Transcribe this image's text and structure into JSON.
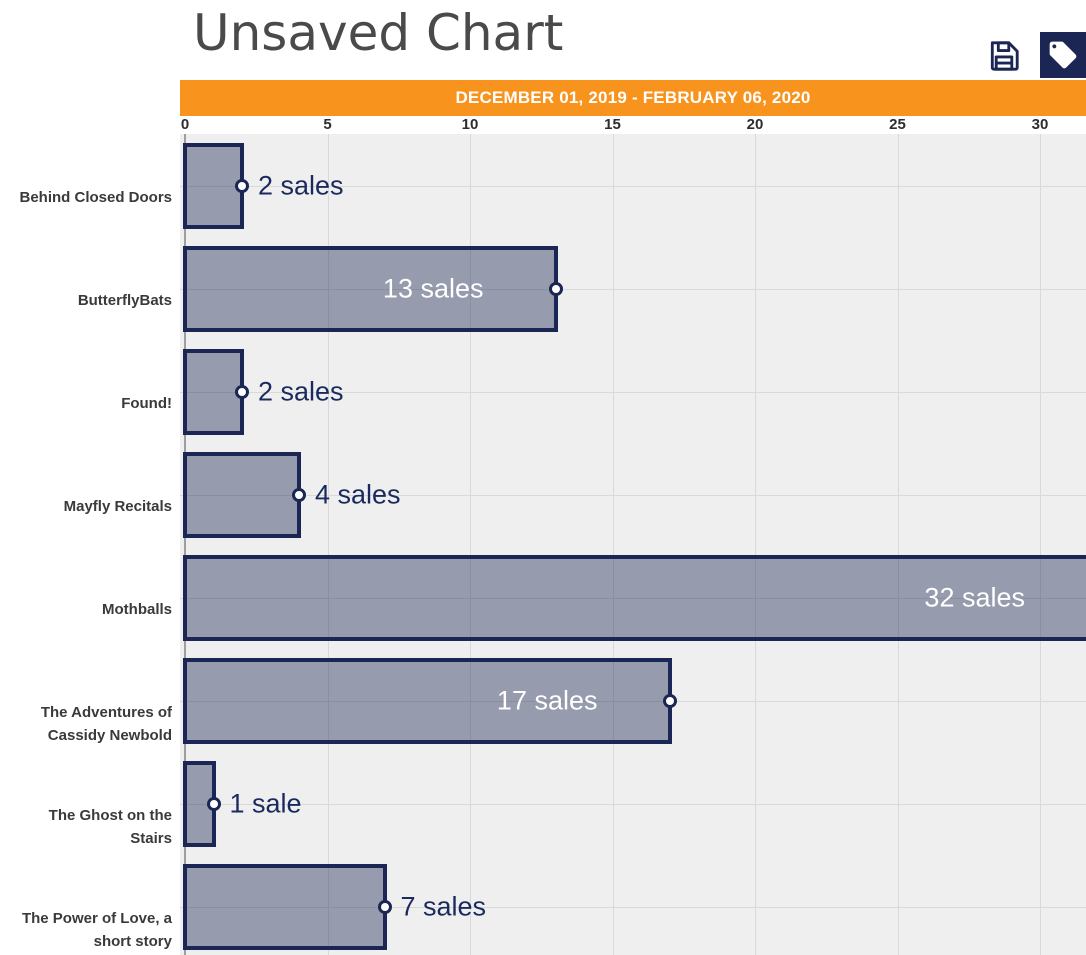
{
  "header": {
    "title": "Unsaved Chart",
    "icons": {
      "save": "floppy-disk-icon",
      "tag": "tag-icon"
    }
  },
  "banner": {
    "date_range": "DECEMBER 01, 2019 - FEBRUARY 06, 2020"
  },
  "colors": {
    "accent_orange": "#F8941D",
    "navy": "#1B2654",
    "bar_fill": "rgba(27,38,84,0.42)",
    "plot_background": "#EFEFEF",
    "gridline": "#D9D9D9",
    "axis_line": "#9E9E9E",
    "label_inside": "#FFFFFF",
    "label_outside": "#1B2A5E"
  },
  "chart_data": {
    "type": "bar",
    "orientation": "horizontal",
    "title": "Unsaved Chart",
    "subtitle": "DECEMBER 01, 2019 - FEBRUARY 06, 2020",
    "categories": [
      "Behind Closed Doors",
      "ButterflyBats",
      "Found!",
      "Mayfly Recitals",
      "Mothballs",
      "The Adventures of\nCassidy Newbold",
      "The Ghost on the\nStairs",
      "The Power of Love, a\nshort story"
    ],
    "values": [
      2,
      13,
      2,
      4,
      32,
      17,
      1,
      7
    ],
    "point_labels": [
      "2 sales",
      "13 sales",
      "2 sales",
      "4 sales",
      "32 sales",
      "17 sales",
      "1 sale",
      "7 sales"
    ],
    "label_inside_bar": [
      false,
      true,
      false,
      false,
      true,
      true,
      false,
      false
    ],
    "x_ticks": [
      0,
      5,
      10,
      15,
      20,
      25,
      30
    ],
    "xlim": [
      0,
      31.6
    ],
    "xlabel": "",
    "ylabel": "",
    "grid": true,
    "legend": false
  }
}
